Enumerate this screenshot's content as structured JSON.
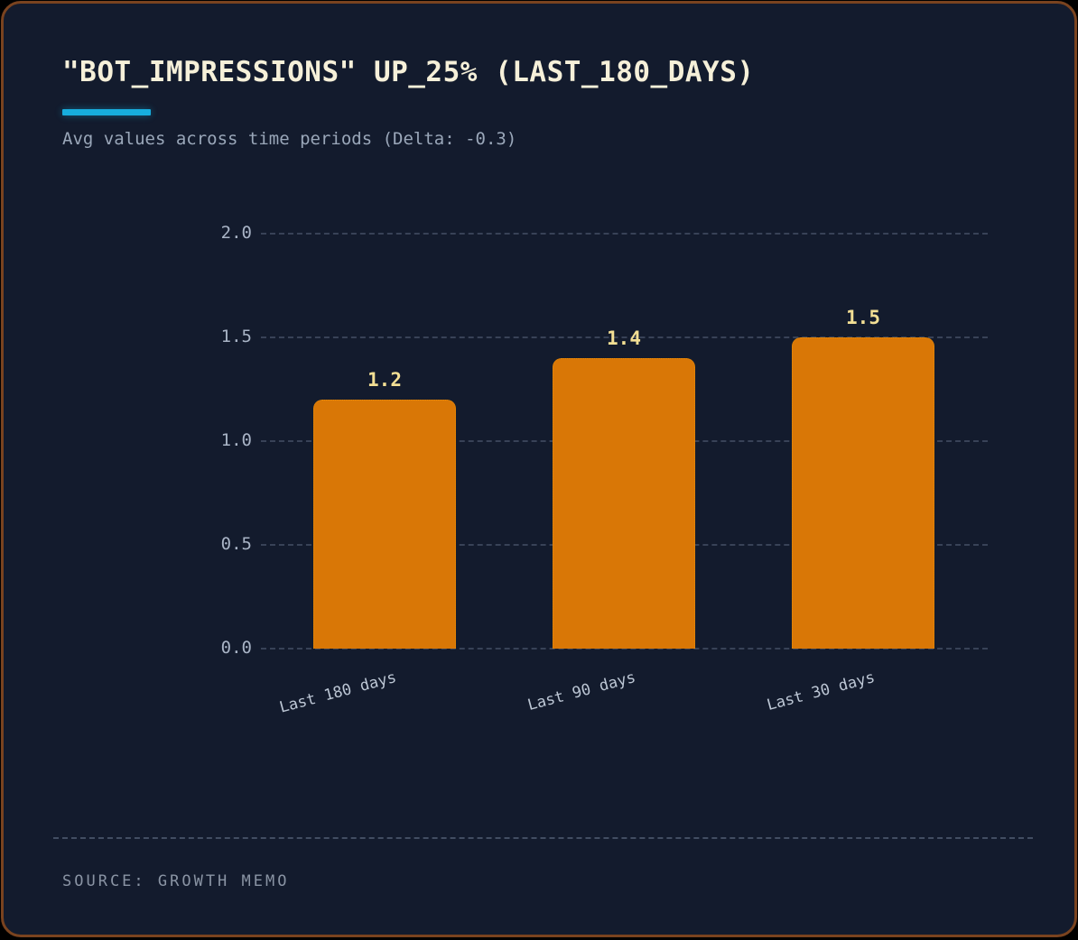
{
  "page": {
    "title": "\"BOT_IMPRESSIONS\" UP_25% (LAST_180_DAYS)",
    "subtitle": "Avg values across time periods (Delta: -0.3)",
    "source": "SOURCE: GROWTH MEMO",
    "accent_color": "#17AEDE",
    "background_color": "#131B2D",
    "frame_border_color": "#7A431F"
  },
  "chart_data": {
    "type": "bar",
    "title": "\"BOT_IMPRESSIONS\" UP_25% (LAST_180_DAYS)",
    "subtitle": "Avg values across time periods (Delta: -0.3)",
    "categories": [
      "Last 180 days",
      "Last 90 days",
      "Last 30 days"
    ],
    "values": [
      1.2,
      1.4,
      1.5
    ],
    "value_labels": [
      "1.2",
      "1.4",
      "1.5"
    ],
    "bar_color": "#D97706",
    "value_label_color": "#F3DF94",
    "xlabel": "",
    "ylabel": "",
    "ylim": [
      0,
      2.0
    ],
    "yticks": [
      2.0,
      1.5,
      1.0,
      0.5,
      0.0
    ],
    "ytick_labels": [
      "2.0",
      "1.5",
      "1.0",
      "0.5",
      "0.0"
    ],
    "grid": true,
    "grid_style": "dashed",
    "legend": false,
    "delta": -0.3,
    "source": "GROWTH MEMO"
  }
}
